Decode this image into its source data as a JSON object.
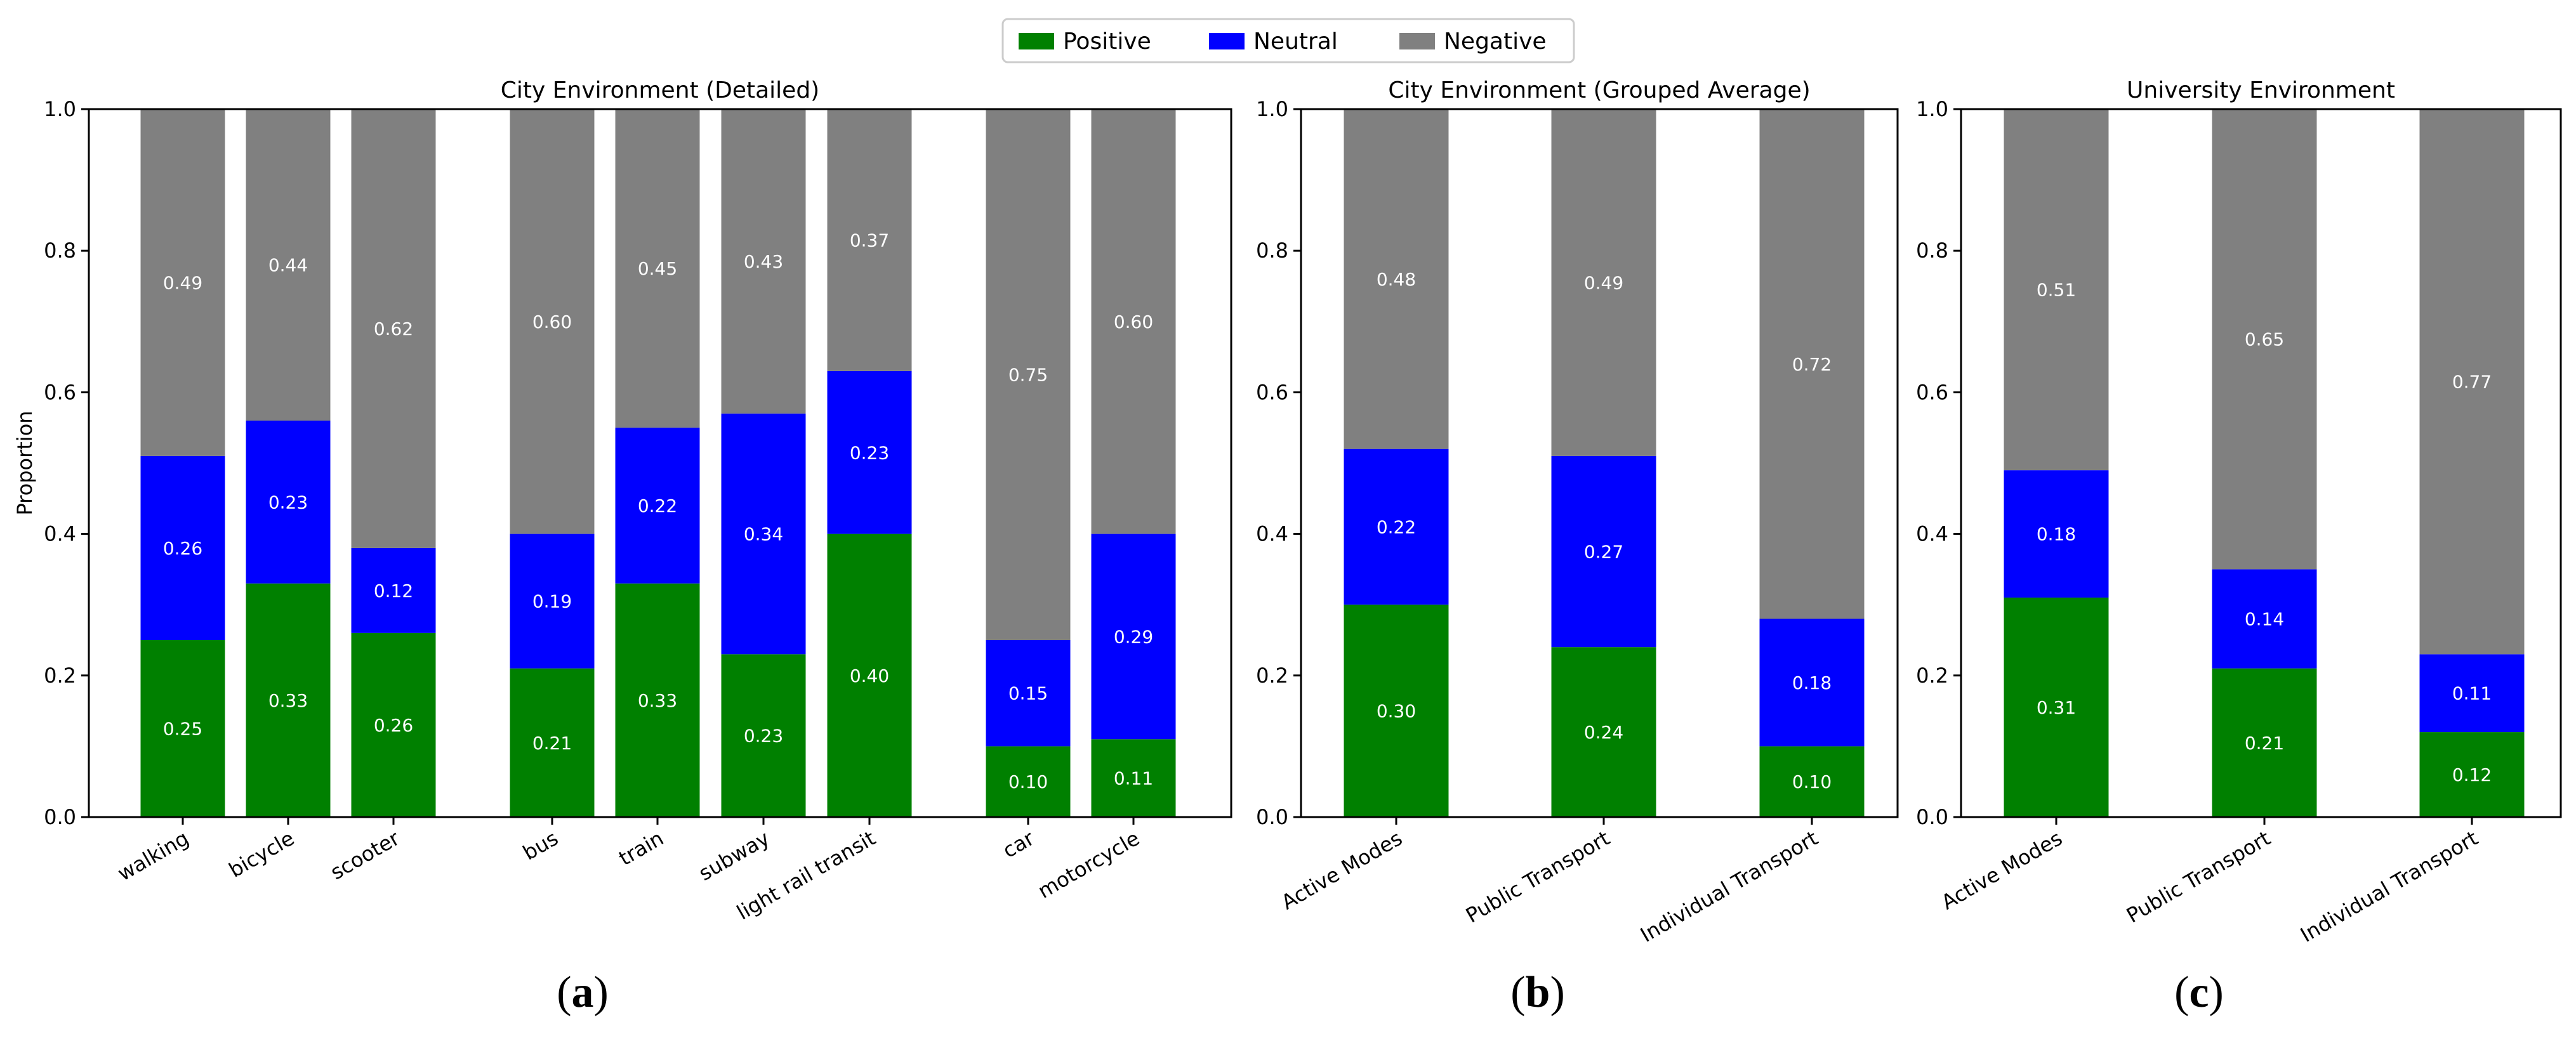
{
  "legend": {
    "placement": "top-center",
    "entries": [
      {
        "label": "Positive",
        "color": "#008000"
      },
      {
        "label": "Neutral",
        "color": "#0000ff"
      },
      {
        "label": "Negative",
        "color": "#808080"
      }
    ]
  },
  "captions": [
    {
      "open": "(",
      "letter": "a",
      "close": ")"
    },
    {
      "open": "(",
      "letter": "b",
      "close": ")"
    },
    {
      "open": "(",
      "letter": "c",
      "close": ")"
    }
  ],
  "chart_data": [
    {
      "type": "bar",
      "stacked": true,
      "title": "City Environment (Detailed)",
      "xlabel": "",
      "ylabel": "Proportion",
      "ylim": [
        0,
        1
      ],
      "yticks": [
        "0.0",
        "0.2",
        "0.4",
        "0.6",
        "0.8",
        "1.0"
      ],
      "groups": [
        [
          "walking",
          "bicycle",
          "scooter"
        ],
        [
          "bus",
          "train",
          "subway",
          "light rail transit"
        ],
        [
          "car",
          "motorcycle"
        ]
      ],
      "categories": [
        "walking",
        "bicycle",
        "scooter",
        "bus",
        "train",
        "subway",
        "light rail transit",
        "car",
        "motorcycle"
      ],
      "series": [
        {
          "name": "Positive",
          "values": [
            0.25,
            0.33,
            0.26,
            0.21,
            0.33,
            0.23,
            0.4,
            0.1,
            0.11
          ],
          "labels": [
            "0.25",
            "0.33",
            "0.26",
            "0.21",
            "0.33",
            "0.23",
            "0.40",
            "0.10",
            "0.11"
          ]
        },
        {
          "name": "Neutral",
          "values": [
            0.26,
            0.23,
            0.12,
            0.19,
            0.22,
            0.34,
            0.23,
            0.15,
            0.29
          ],
          "labels": [
            "0.26",
            "0.23",
            "0.12",
            "0.19",
            "0.22",
            "0.34",
            "0.23",
            "0.15",
            "0.29"
          ]
        },
        {
          "name": "Negative",
          "values": [
            0.49,
            0.44,
            0.62,
            0.6,
            0.45,
            0.43,
            0.37,
            0.75,
            0.6
          ],
          "labels": [
            "0.49",
            "0.44",
            "0.62",
            "0.60",
            "0.45",
            "0.43",
            "0.37",
            "0.75",
            "0.60"
          ]
        }
      ]
    },
    {
      "type": "bar",
      "stacked": true,
      "title": "City Environment (Grouped Average)",
      "xlabel": "",
      "ylabel": "",
      "ylim": [
        0,
        1
      ],
      "yticks": [
        "0.0",
        "0.2",
        "0.4",
        "0.6",
        "0.8",
        "1.0"
      ],
      "categories": [
        "Active Modes",
        "Public Transport",
        "Individual Transport"
      ],
      "series": [
        {
          "name": "Positive",
          "values": [
            0.3,
            0.24,
            0.1
          ],
          "labels": [
            "0.30",
            "0.24",
            "0.10"
          ]
        },
        {
          "name": "Neutral",
          "values": [
            0.22,
            0.27,
            0.18
          ],
          "labels": [
            "0.22",
            "0.27",
            "0.18"
          ]
        },
        {
          "name": "Negative",
          "values": [
            0.48,
            0.49,
            0.72
          ],
          "labels": [
            "0.48",
            "0.49",
            "0.72"
          ]
        }
      ]
    },
    {
      "type": "bar",
      "stacked": true,
      "title": "University Environment",
      "xlabel": "",
      "ylabel": "",
      "ylim": [
        0,
        1
      ],
      "yticks": [
        "0.0",
        "0.2",
        "0.4",
        "0.6",
        "0.8",
        "1.0"
      ],
      "categories": [
        "Active Modes",
        "Public Transport",
        "Individual Transport"
      ],
      "series": [
        {
          "name": "Positive",
          "values": [
            0.31,
            0.21,
            0.12
          ],
          "labels": [
            "0.31",
            "0.21",
            "0.12"
          ]
        },
        {
          "name": "Neutral",
          "values": [
            0.18,
            0.14,
            0.11
          ],
          "labels": [
            "0.18",
            "0.14",
            "0.11"
          ]
        },
        {
          "name": "Negative",
          "values": [
            0.51,
            0.65,
            0.77
          ],
          "labels": [
            "0.51",
            "0.65",
            "0.77"
          ]
        }
      ]
    }
  ]
}
